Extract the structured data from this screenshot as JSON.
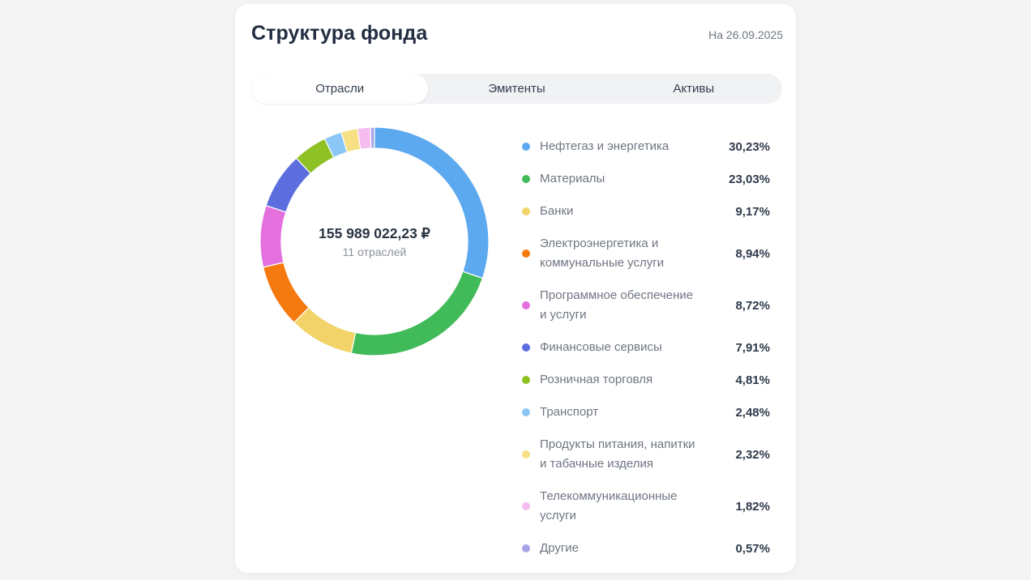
{
  "header": {
    "title": "Структура фонда",
    "date_label": "На 26.09.2025"
  },
  "tabs": [
    {
      "name": "tab-sectors",
      "label": "Отрасли",
      "active": true
    },
    {
      "name": "tab-issuers",
      "label": "Эмитенты",
      "active": false
    },
    {
      "name": "tab-assets",
      "label": "Активы",
      "active": false
    }
  ],
  "chart_data": {
    "type": "pie",
    "variant": "donut",
    "title": "Структура фонда",
    "legend_position": "right",
    "start_angle_deg": -90,
    "direction": "clockwise",
    "center_text": {
      "total": "155 989 022,23 ₽",
      "subtitle": "11 отраслей"
    },
    "segments": [
      {
        "label": "Нефтегаз и энергетика",
        "value": 30.23,
        "display": "30,23%",
        "color": "#5ca9ef"
      },
      {
        "label": "Материалы",
        "value": 23.03,
        "display": "23,03%",
        "color": "#41bb59"
      },
      {
        "label": "Банки",
        "value": 9.17,
        "display": "9,17%",
        "color": "#f1d369"
      },
      {
        "label": "Электроэнергетика и коммунальные услуги",
        "value": 8.94,
        "display": "8,94%",
        "color": "#f4790f"
      },
      {
        "label": "Программное обеспечение и услуги",
        "value": 8.72,
        "display": "8,72%",
        "color": "#e470de"
      },
      {
        "label": "Финансовые сервисы",
        "value": 7.91,
        "display": "7,91%",
        "color": "#5c6edd"
      },
      {
        "label": "Розничная торговля",
        "value": 4.81,
        "display": "4,81%",
        "color": "#8fc024"
      },
      {
        "label": "Транспорт",
        "value": 2.48,
        "display": "2,48%",
        "color": "#8ac7f7"
      },
      {
        "label": "Продукты питания, напитки и табачные изделия",
        "value": 2.32,
        "display": "2,32%",
        "color": "#f7e083"
      },
      {
        "label": "Телекоммуникационные услуги",
        "value": 1.82,
        "display": "1,82%",
        "color": "#f6bcef"
      },
      {
        "label": "Другие",
        "value": 0.57,
        "display": "0,57%",
        "color": "#a8a5e6"
      }
    ]
  },
  "colors": {
    "page_bg": "#f4f4f5",
    "card_bg": "#ffffff",
    "title_text": "#242e42",
    "muted_text": "#6f7682",
    "value_text": "#2e3a4c",
    "tabbar_bg": "#f1f2f4"
  }
}
